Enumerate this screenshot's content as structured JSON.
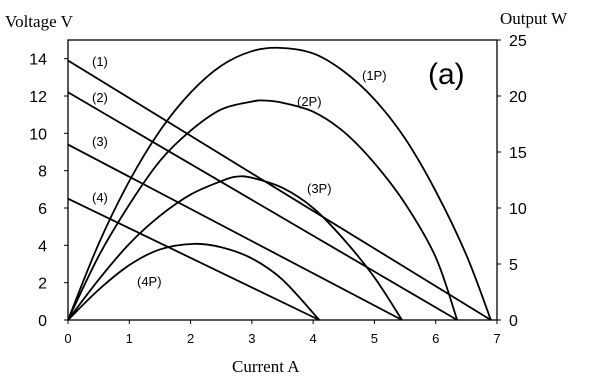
{
  "chart_data": {
    "type": "line",
    "panel_label": "(a)",
    "xlabel": "Current A",
    "ylabel_left": "Voltage V",
    "ylabel_right": "Output W",
    "xlim": [
      0,
      7
    ],
    "ylim_left": [
      0,
      15
    ],
    "ylim_right": [
      0,
      25
    ],
    "x_ticks": [
      "0",
      "1",
      "2",
      "3",
      "4",
      "5",
      "6",
      "7"
    ],
    "y_left_ticks": [
      "0",
      "2",
      "4",
      "6",
      "8",
      "10",
      "12",
      "14"
    ],
    "y_right_ticks": [
      "0",
      "5",
      "10",
      "15",
      "20",
      "25"
    ],
    "grid": false,
    "series": [
      {
        "name": "(1)",
        "axis": "left",
        "kind": "voltage",
        "x": [
          0,
          6.9
        ],
        "y": [
          13.9,
          0
        ]
      },
      {
        "name": "(2)",
        "axis": "left",
        "kind": "voltage",
        "x": [
          0,
          6.35
        ],
        "y": [
          12.2,
          0
        ]
      },
      {
        "name": "(3)",
        "axis": "left",
        "kind": "voltage",
        "x": [
          0,
          5.45
        ],
        "y": [
          9.4,
          0
        ]
      },
      {
        "name": "(4)",
        "axis": "left",
        "kind": "voltage",
        "x": [
          0,
          4.1
        ],
        "y": [
          6.5,
          0
        ]
      },
      {
        "name": "(1P)",
        "axis": "right",
        "kind": "power",
        "x": [
          0,
          0.5,
          1.0,
          1.5,
          2.0,
          2.5,
          3.0,
          3.45,
          4.0,
          4.5,
          5.0,
          5.5,
          6.0,
          6.5,
          6.9
        ],
        "y": [
          0,
          6.8,
          12.4,
          16.9,
          20.3,
          22.7,
          24.0,
          24.3,
          23.8,
          22.2,
          19.7,
          16.2,
          11.5,
          5.8,
          0
        ]
      },
      {
        "name": "(2P)",
        "axis": "right",
        "kind": "power",
        "x": [
          0,
          0.5,
          1.0,
          1.5,
          2.0,
          2.5,
          3.0,
          3.2,
          3.5,
          4.0,
          4.5,
          5.0,
          5.5,
          6.0,
          6.35
        ],
        "y": [
          0,
          5.7,
          10.3,
          14.2,
          16.9,
          18.8,
          19.5,
          19.6,
          19.4,
          18.6,
          16.8,
          14.0,
          10.4,
          5.6,
          0
        ]
      },
      {
        "name": "(3P)",
        "axis": "right",
        "kind": "power",
        "x": [
          0,
          0.5,
          1.0,
          1.5,
          2.0,
          2.5,
          2.75,
          3.0,
          3.5,
          4.0,
          4.5,
          5.0,
          5.45
        ],
        "y": [
          0,
          3.6,
          6.8,
          9.3,
          11.2,
          12.4,
          12.8,
          12.7,
          11.8,
          10.0,
          7.2,
          3.8,
          0
        ]
      },
      {
        "name": "(4P)",
        "axis": "right",
        "kind": "power",
        "x": [
          0,
          0.5,
          1.0,
          1.5,
          2.05,
          2.5,
          3.0,
          3.5,
          4.1
        ],
        "y": [
          0,
          2.7,
          4.9,
          6.3,
          6.8,
          6.5,
          5.5,
          3.6,
          0
        ]
      }
    ]
  }
}
